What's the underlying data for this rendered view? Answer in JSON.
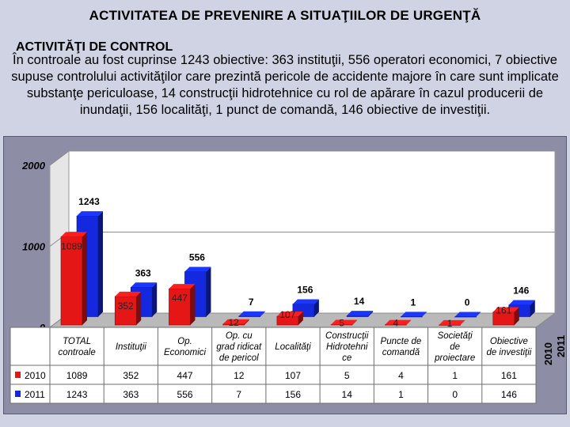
{
  "header": {
    "title": "ACTIVITATEA DE PREVENIRE A SITUAŢIILOR DE URGENŢĂ",
    "subtitle": "ACTIVITĂŢI DE CONTROL",
    "paragraph": "În controale au fost cuprinse 1243 obiective: 363 instituţii, 556 operatori economici,  7 obiective supuse controlului activităţilor care prezintă pericole de accidente majore în care sunt implicate substanţe periculoase, 14 construcţii hidrotehnice cu rol de apărare în cazul producerii de inundaţii, 156 localităţi, 1 punct de comandă, 146 obiective de investiţii."
  },
  "colors": {
    "s2010": "#e41616",
    "s2011": "#1428e0",
    "background": "#cfd3e4",
    "chart_frame": "#8d8da6"
  },
  "chart_data": {
    "type": "bar",
    "ylim": [
      0,
      2000
    ],
    "yticks": [
      0,
      1000,
      2000
    ],
    "categories": [
      [
        "TOTAL",
        "controale"
      ],
      [
        "Instituţii"
      ],
      [
        "Op.",
        "Economici"
      ],
      [
        "Op. cu",
        "grad ridicat",
        "de pericol"
      ],
      [
        "Localităţi"
      ],
      [
        "Construcţii",
        "Hidrotehni",
        "ce"
      ],
      [
        "Puncte de",
        "comandă"
      ],
      [
        "Societăţi",
        "de",
        "proiectare"
      ],
      [
        "Obiective",
        "de investiţii"
      ]
    ],
    "series": [
      {
        "name": "2010",
        "values": [
          1089,
          352,
          447,
          12,
          107,
          5,
          4,
          1,
          161
        ]
      },
      {
        "name": "2011",
        "values": [
          1243,
          363,
          556,
          7,
          156,
          14,
          1,
          0,
          146
        ]
      }
    ],
    "depth_axis_labels": [
      "2010",
      "2011"
    ]
  }
}
